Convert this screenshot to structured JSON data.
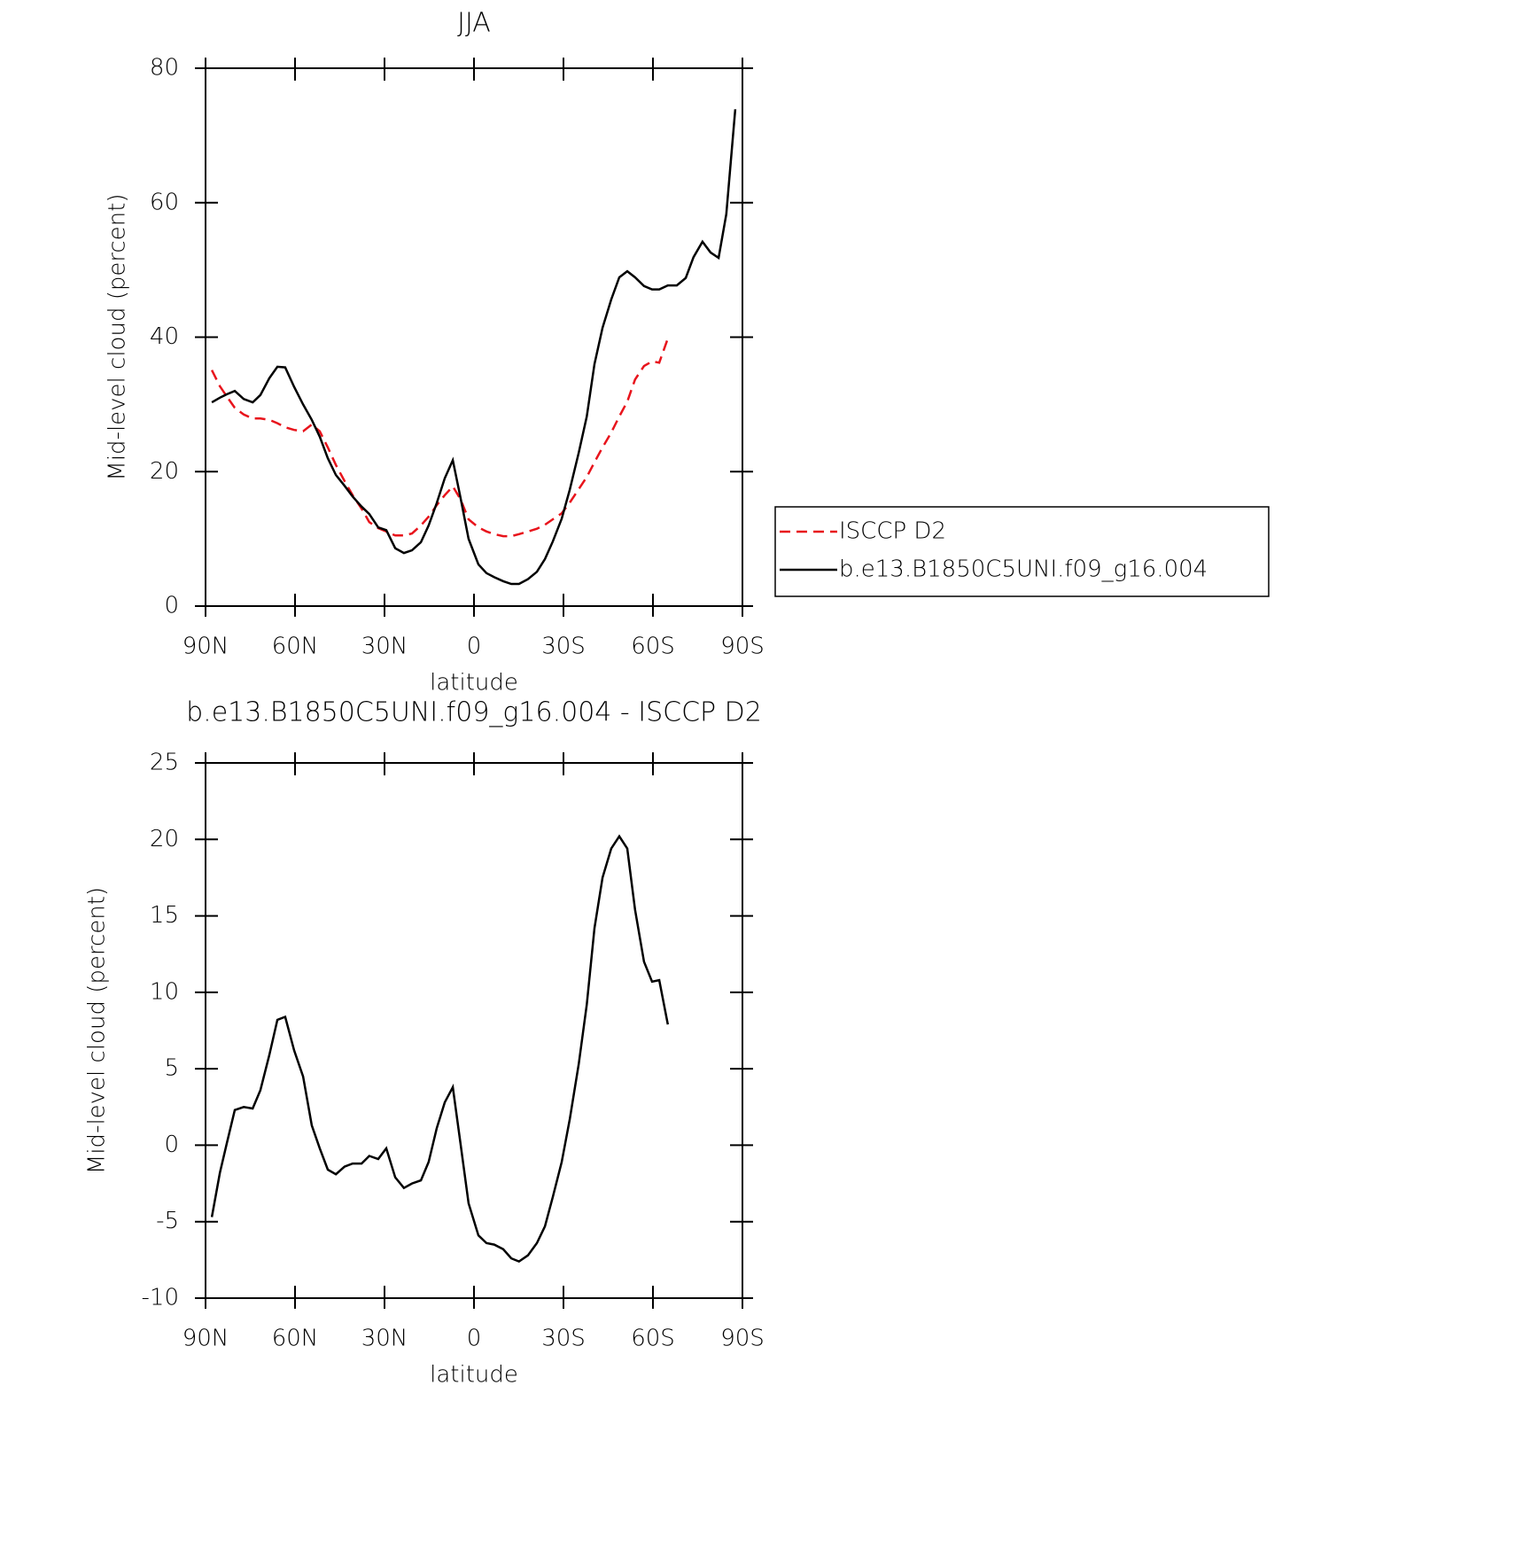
{
  "chart_data": [
    {
      "type": "line",
      "title": "JJA",
      "xlabel": "latitude",
      "ylabel": "Mid-level cloud (percent)",
      "x": [
        87.9,
        85.2,
        82.9,
        80.2,
        77.2,
        74.2,
        71.6,
        68.6,
        65.9,
        63.3,
        60.3,
        57.3,
        54.4,
        51.7,
        49.0,
        46.3,
        43.4,
        40.7,
        37.7,
        35.1,
        32.1,
        29.4,
        26.4,
        23.5,
        20.8,
        17.8,
        15.2,
        12.5,
        9.8,
        7.1,
        4.5,
        1.8,
        -1.5,
        -4.2,
        -6.8,
        -9.8,
        -12.5,
        -15.1,
        -18.1,
        -21.1,
        -23.8,
        -26.4,
        -29.4,
        -32.1,
        -35.1,
        -37.8,
        -40.4,
        -43.1,
        -46.0,
        -48.7,
        -51.4,
        -54.0,
        -57.0,
        -59.7,
        -62.1,
        -65.0,
        -68.0,
        -71.0,
        -73.6,
        -76.6,
        -79.3,
        -82.0,
        -84.6,
        -87.6
      ],
      "series": [
        {
          "name": "ISCCP D2",
          "color": "#e8141c",
          "linestyle": "dashed",
          "values": [
            35.1,
            32.7,
            31.2,
            29.5,
            28.5,
            27.9,
            27.9,
            27.7,
            27.2,
            26.6,
            26.2,
            26.0,
            27.0,
            26.0,
            23.6,
            21.0,
            18.6,
            16.5,
            14.5,
            12.5,
            11.6,
            11.1,
            10.5,
            10.5,
            10.8,
            12.0,
            13.3,
            15.0,
            16.5,
            17.8,
            15.9,
            12.9,
            11.7,
            11.1,
            10.7,
            10.4,
            10.4,
            10.7,
            11.1,
            11.5,
            12.1,
            12.9,
            13.8,
            15.4,
            17.4,
            19.2,
            21.4,
            23.6,
            25.8,
            28.2,
            30.4,
            33.7,
            35.7,
            36.4,
            36.2,
            39.8,
            null,
            null,
            null,
            null,
            null,
            null,
            null,
            null
          ]
        },
        {
          "name": "b.e13.B1850C5UNI.f09_g16.004",
          "color": "#000000",
          "linestyle": "solid",
          "values": [
            30.3,
            31.0,
            31.5,
            32.0,
            30.8,
            30.3,
            31.4,
            33.9,
            35.6,
            35.5,
            32.6,
            30.0,
            27.7,
            25.2,
            22.0,
            19.5,
            17.9,
            16.3,
            14.8,
            13.7,
            11.7,
            11.3,
            8.6,
            7.9,
            8.3,
            9.5,
            12.0,
            15.3,
            19.0,
            21.7,
            16.1,
            10.0,
            6.2,
            4.9,
            4.3,
            3.7,
            3.3,
            3.3,
            4.0,
            5.1,
            7.0,
            9.6,
            13.0,
            17.3,
            22.8,
            28.2,
            36.0,
            41.4,
            45.6,
            48.9,
            49.8,
            48.9,
            47.6,
            47.1,
            47.1,
            47.7,
            47.7,
            48.8,
            51.9,
            54.2,
            52.6,
            51.8,
            58.3,
            73.9
          ]
        }
      ],
      "xlim": [
        90,
        -90
      ],
      "xticks": [
        {
          "value": 90,
          "label": "90N"
        },
        {
          "value": 60,
          "label": "60N"
        },
        {
          "value": 30,
          "label": "30N"
        },
        0,
        {
          "value": -30,
          "label": "30S"
        },
        {
          "value": -60,
          "label": "60S"
        },
        {
          "value": -90,
          "label": "90S"
        }
      ],
      "ylim": [
        0,
        80
      ],
      "yticks": [
        0,
        20,
        40,
        60,
        80
      ],
      "legend": "right"
    },
    {
      "type": "line",
      "title": "b.e13.B1850C5UNI.f09_g16.004 - ISCCP D2",
      "xlabel": "latitude",
      "ylabel": "Mid-level cloud (percent)",
      "x": [
        87.9,
        85.2,
        82.9,
        80.2,
        77.2,
        74.2,
        71.6,
        68.6,
        65.9,
        63.3,
        60.3,
        57.3,
        54.4,
        51.7,
        49.0,
        46.3,
        43.4,
        40.7,
        37.7,
        35.1,
        32.1,
        29.4,
        26.4,
        23.5,
        20.8,
        17.8,
        15.2,
        12.5,
        9.8,
        7.1,
        4.5,
        1.8,
        -1.5,
        -4.2,
        -6.8,
        -9.8,
        -12.5,
        -15.1,
        -18.1,
        -21.1,
        -23.8,
        -26.4,
        -29.4,
        -32.1,
        -35.1,
        -37.8,
        -40.4,
        -43.1,
        -46.0,
        -48.7,
        -51.4,
        -54.0,
        -57.0,
        -59.7,
        -62.1,
        -65.0,
        -68.0,
        -71.0,
        -73.6,
        -76.6,
        -79.3,
        -82.0,
        -84.6,
        -87.6
      ],
      "series": [
        {
          "color": "#000000",
          "linestyle": "solid",
          "values": [
            -4.7,
            -1.8,
            0.1,
            2.3,
            2.5,
            2.4,
            3.6,
            5.9,
            8.2,
            8.4,
            6.2,
            4.5,
            1.3,
            -0.2,
            -1.6,
            -1.9,
            -1.4,
            -1.2,
            -1.2,
            -0.7,
            -0.9,
            -0.2,
            -2.1,
            -2.8,
            -2.5,
            -2.3,
            -1.1,
            1.1,
            2.8,
            3.8,
            0.1,
            -3.8,
            -5.9,
            -6.4,
            -6.5,
            -6.8,
            -7.4,
            -7.6,
            -7.2,
            -6.4,
            -5.3,
            -3.4,
            -1.1,
            1.7,
            5.3,
            9.2,
            14.2,
            17.5,
            19.4,
            20.2,
            19.4,
            15.4,
            12.0,
            10.7,
            10.8,
            7.9,
            null,
            null,
            null,
            null,
            null,
            null,
            null,
            null
          ]
        }
      ],
      "xlim": [
        90,
        -90
      ],
      "xticks": [
        {
          "value": 90,
          "label": "90N"
        },
        {
          "value": 60,
          "label": "60N"
        },
        {
          "value": 30,
          "label": "30N"
        },
        0,
        {
          "value": -30,
          "label": "30S"
        },
        {
          "value": -60,
          "label": "60S"
        },
        {
          "value": -90,
          "label": "90S"
        }
      ],
      "ylim": [
        -10,
        25
      ],
      "yticks": [
        -10,
        -5,
        0,
        5,
        10,
        15,
        20,
        25
      ]
    }
  ]
}
